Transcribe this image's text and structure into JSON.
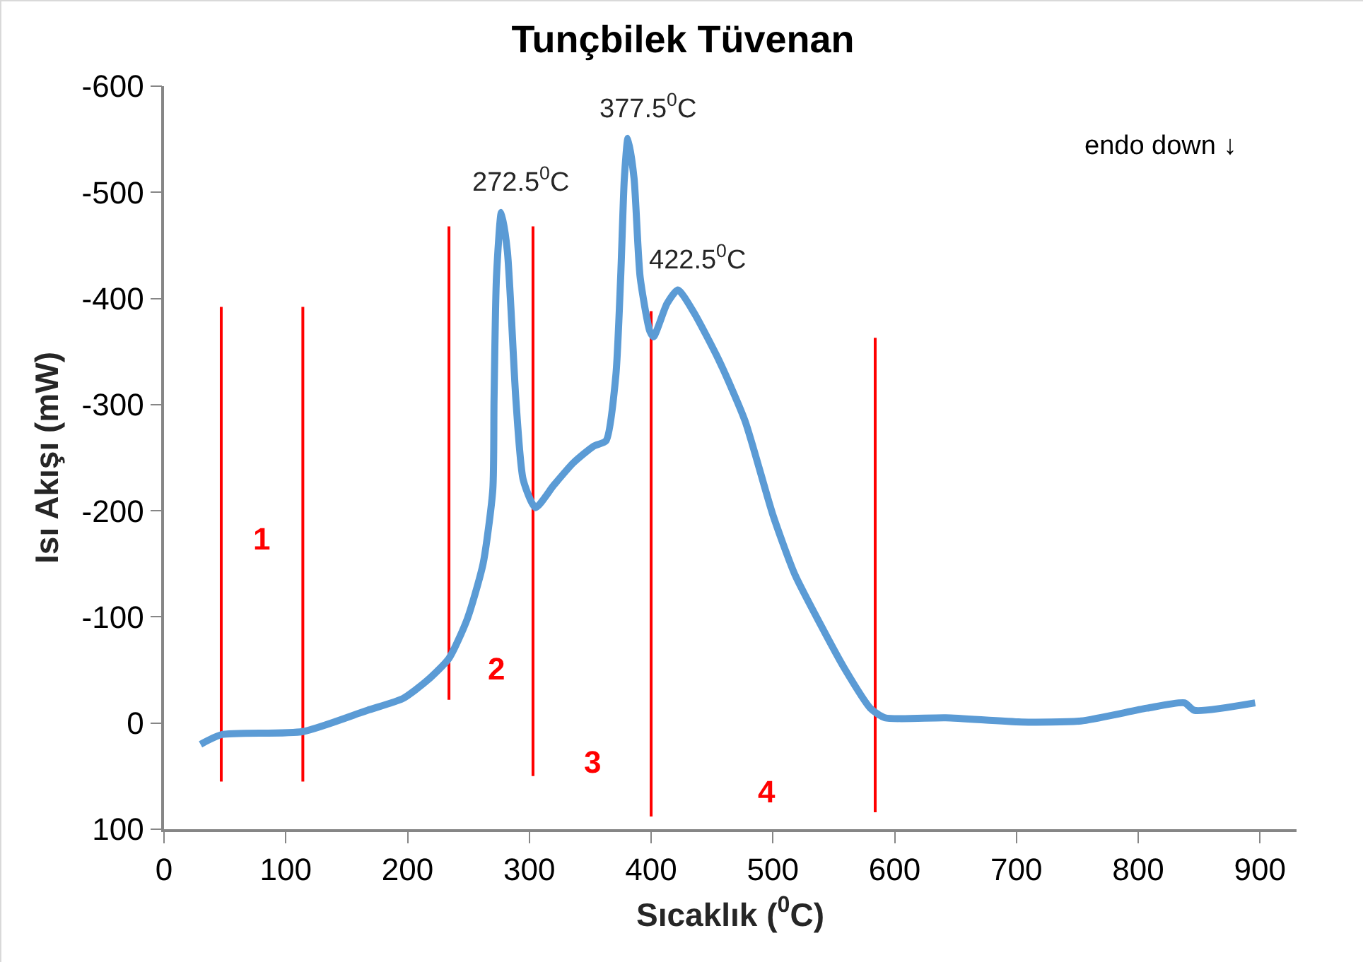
{
  "chart_data": {
    "type": "line",
    "title": "Tunçbilek Tüvenan",
    "xlabel": "Sıcaklık ($^{0}$C)",
    "ylabel": "Isı Akışı (mW)",
    "xlim": [
      0,
      930
    ],
    "xticks": [
      0,
      100,
      200,
      300,
      400,
      500,
      600,
      700,
      800,
      900
    ],
    "ylim": [
      100,
      -600
    ],
    "yticks": [
      -600,
      -500,
      -400,
      -300,
      -200,
      -100,
      0,
      100
    ],
    "grid": false,
    "marker": "none",
    "line_style": "solid",
    "series": [
      {
        "color": "#5b9bd5",
        "x": [
          30,
          47,
          114,
          167,
          196,
          216,
          234,
          249,
          262,
          270,
          271,
          273,
          277,
          282,
          289,
          295,
          305,
          320,
          336,
          353,
          363,
          371,
          375,
          378,
          381,
          386,
          391,
          399,
          402,
          413,
          422,
          435,
          456,
          477,
          500,
          518,
          539,
          559,
          580,
          592,
          642,
          704,
          753,
          807,
          838,
          846,
          896
        ],
        "values": [
          20,
          11,
          8,
          -12,
          -23,
          -40,
          -61,
          -98,
          -150,
          -220,
          -304,
          -420,
          -481,
          -444,
          -304,
          -229,
          -203,
          -224,
          -245,
          -261,
          -266,
          -327,
          -420,
          -513,
          -551,
          -513,
          -420,
          -369,
          -364,
          -395,
          -408,
          -387,
          -341,
          -285,
          -196,
          -140,
          -93,
          -51,
          -14,
          -5,
          -5,
          -1,
          -2,
          -14,
          -19,
          -12,
          -19
        ]
      },
      {
        "color": "#ff0000",
        "x": [
          47,
          47
        ],
        "values": [
          -392,
          55
        ]
      },
      {
        "color": "#ff0000",
        "x": [
          114,
          114
        ],
        "values": [
          -392,
          55
        ]
      },
      {
        "color": "#ff0000",
        "x": [
          234,
          234
        ],
        "values": [
          -468,
          -22
        ]
      },
      {
        "color": "#ff0000",
        "x": [
          303,
          303
        ],
        "values": [
          -468,
          50
        ]
      },
      {
        "color": "#ff0000",
        "x": [
          400,
          400
        ],
        "values": [
          -388,
          88
        ]
      },
      {
        "color": "#ff0000",
        "x": [
          584,
          584
        ],
        "values": [
          -363,
          84
        ]
      }
    ],
    "annotations": [
      {
        "text": "272.5$^{0}$C",
        "x": 277,
        "y": -481
      },
      {
        "text": "377.5$^{0}$C",
        "x": 381,
        "y": -551
      },
      {
        "text": "422.5$^{0}$C",
        "x": 422,
        "y": -408
      },
      "1",
      "2",
      "3",
      "4",
      "endo down ↓"
    ]
  }
}
